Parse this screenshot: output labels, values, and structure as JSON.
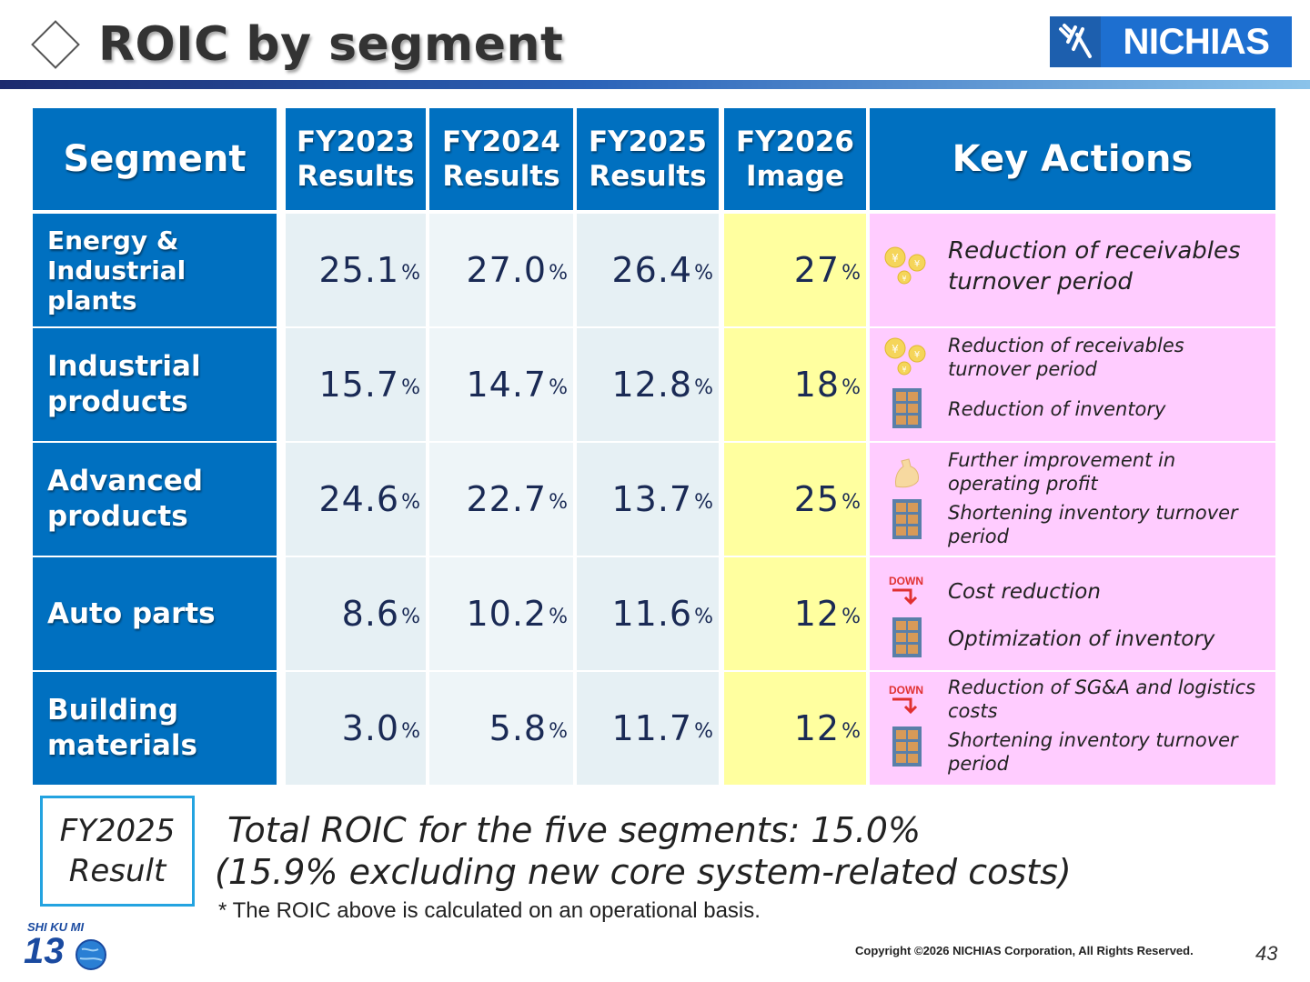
{
  "header": {
    "title": "ROIC by segment",
    "logo_text": "NICHIAS"
  },
  "table": {
    "headers": {
      "segment": "Segment",
      "fy2023": [
        "FY2023",
        "Results"
      ],
      "fy2024": [
        "FY2024",
        "Results"
      ],
      "fy2025": [
        "FY2025",
        "Results"
      ],
      "fy2026": [
        "FY2026",
        "Image"
      ],
      "key_actions": "Key Actions"
    },
    "rows": [
      {
        "segment": [
          "Energy &",
          "Industrial",
          "plants"
        ],
        "values": [
          "25.1",
          "27.0",
          "26.4",
          "27"
        ],
        "actions": [
          {
            "icon": "yen-coins-icon",
            "text": "Reduction of receivables turnover period"
          }
        ]
      },
      {
        "segment": [
          "Industrial",
          "products"
        ],
        "values": [
          "15.7",
          "14.7",
          "12.8",
          "18"
        ],
        "actions": [
          {
            "icon": "yen-coins-icon",
            "text": "Reduction of receivables turnover period"
          },
          {
            "icon": "inventory-shelf-icon",
            "text": "Reduction of inventory"
          }
        ]
      },
      {
        "segment": [
          "Advanced",
          "products"
        ],
        "values": [
          "24.6",
          "22.7",
          "13.7",
          "25"
        ],
        "actions": [
          {
            "icon": "muscle-arm-icon",
            "text": "Further improvement in operating profit"
          },
          {
            "icon": "inventory-shelf-icon",
            "text": "Shortening inventory turnover period"
          }
        ]
      },
      {
        "segment": [
          "Auto parts"
        ],
        "values": [
          "8.6",
          "10.2",
          "11.6",
          "12"
        ],
        "actions": [
          {
            "icon": "down-arrow-icon",
            "text": "Cost reduction"
          },
          {
            "icon": "inventory-shelf-icon",
            "text": "Optimization of inventory"
          }
        ]
      },
      {
        "segment": [
          "Building",
          "materials"
        ],
        "values": [
          "3.0",
          "5.8",
          "11.7",
          "12"
        ],
        "actions": [
          {
            "icon": "down-arrow-icon",
            "text": "Reduction of SG&A and logistics costs"
          },
          {
            "icon": "inventory-shelf-icon",
            "text": "Shortening inventory turnover period"
          }
        ]
      }
    ],
    "unit": "%",
    "down_label": "DOWN"
  },
  "footer": {
    "result_box": [
      "FY2025",
      "Result"
    ],
    "total_lines": [
      "Total ROIC for the five segments: 15.0%",
      "(15.9% excluding new core system-related costs)"
    ],
    "note": "* The ROIC above is calculated on an operational basis.",
    "copyright": "Copyright ©2026 NICHIAS Corporation, All Rights Reserved.",
    "page_number": "43",
    "shikumi_label": "SHI KU MI",
    "shikumi_number": "13"
  },
  "colors": {
    "header_blue": "#0070c0",
    "fy2026_yellow": "#ffff9f",
    "actions_pink": "#ffccff",
    "result_border": "#23a3e0"
  }
}
